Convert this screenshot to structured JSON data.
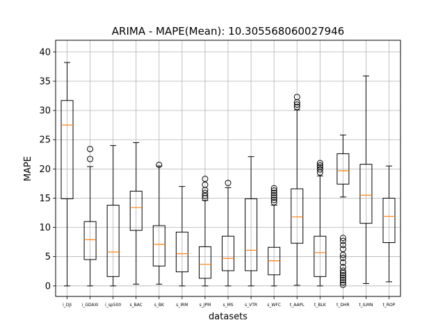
{
  "chart_data": {
    "type": "box",
    "title": "ARIMA - MAPE(Mean): 10.305568060027946",
    "xlabel": "datasets",
    "ylabel": "MAPE",
    "ylim": [
      -1.8,
      42
    ],
    "yticks": [
      0,
      5,
      10,
      15,
      20,
      25,
      30,
      35,
      40
    ],
    "grid": true,
    "colors": {
      "box": "#000000",
      "median": "#ff7f0e",
      "grid": "#b0b0b0"
    },
    "categories": [
      "i_DJI",
      "i_GDAXI",
      "i_sp500",
      "s_BAC",
      "s_BK",
      "s_IRM",
      "s_JPM",
      "s_MS",
      "s_VTR",
      "s_WFC",
      "t_AAPL",
      "t_BLK",
      "t_DHR",
      "t_ILMN",
      "t_ROP"
    ],
    "boxes": [
      {
        "whislo": 0,
        "q1": 14.9,
        "med": 27.5,
        "q3": 31.7,
        "whishi": 38.2,
        "fliers": []
      },
      {
        "whislo": 0,
        "q1": 4.5,
        "med": 7.9,
        "q3": 11.0,
        "whishi": 20.4,
        "fliers": [
          21.7,
          23.4
        ]
      },
      {
        "whislo": 0,
        "q1": 1.6,
        "med": 5.8,
        "q3": 13.8,
        "whishi": 24.0,
        "fliers": []
      },
      {
        "whislo": 0.3,
        "q1": 9.5,
        "med": 13.4,
        "q3": 16.2,
        "whishi": 24.5,
        "fliers": []
      },
      {
        "whislo": 0.3,
        "q1": 3.4,
        "med": 7.1,
        "q3": 10.3,
        "whishi": 20.5,
        "fliers": [
          20.7
        ]
      },
      {
        "whislo": 0,
        "q1": 2.4,
        "med": 5.5,
        "q3": 9.2,
        "whishi": 17.0,
        "fliers": []
      },
      {
        "whislo": 0,
        "q1": 1.3,
        "med": 3.7,
        "q3": 6.7,
        "whishi": 14.6,
        "fliers": [
          15.0,
          15.4,
          15.9,
          16.4,
          17.3,
          18.3
        ]
      },
      {
        "whislo": 0,
        "q1": 2.6,
        "med": 4.7,
        "q3": 8.5,
        "whishi": 16.8,
        "fliers": [
          17.6
        ]
      },
      {
        "whislo": 0,
        "q1": 2.6,
        "med": 6.1,
        "q3": 14.9,
        "whishi": 22.1,
        "fliers": []
      },
      {
        "whislo": 0,
        "q1": 1.9,
        "med": 4.3,
        "q3": 6.6,
        "whishi": 13.8,
        "fliers": [
          14.3,
          14.7,
          15.1,
          15.5,
          15.9,
          16.3,
          16.7
        ]
      },
      {
        "whislo": 0.1,
        "q1": 7.3,
        "med": 11.8,
        "q3": 16.6,
        "whishi": 30.1,
        "fliers": [
          30.6,
          31.0,
          31.4,
          32.3
        ]
      },
      {
        "whislo": 0,
        "q1": 1.6,
        "med": 5.7,
        "q3": 8.5,
        "whishi": 18.8,
        "fliers": [
          19.4,
          19.9,
          20.3,
          20.6,
          21.0
        ]
      },
      {
        "whislo": 15.2,
        "q1": 17.4,
        "med": 19.7,
        "q3": 22.6,
        "whishi": 25.8,
        "fliers": [
          0.2,
          0.6,
          1.0,
          1.4,
          1.8,
          2.2,
          2.6,
          3.2,
          4.0,
          4.8,
          5.3,
          6.3,
          7.0,
          7.7,
          8.2
        ]
      },
      {
        "whislo": 0.4,
        "q1": 10.7,
        "med": 15.5,
        "q3": 20.8,
        "whishi": 35.9,
        "fliers": []
      },
      {
        "whislo": 0.7,
        "q1": 7.4,
        "med": 11.9,
        "q3": 15.0,
        "whishi": 20.5,
        "fliers": []
      }
    ]
  }
}
